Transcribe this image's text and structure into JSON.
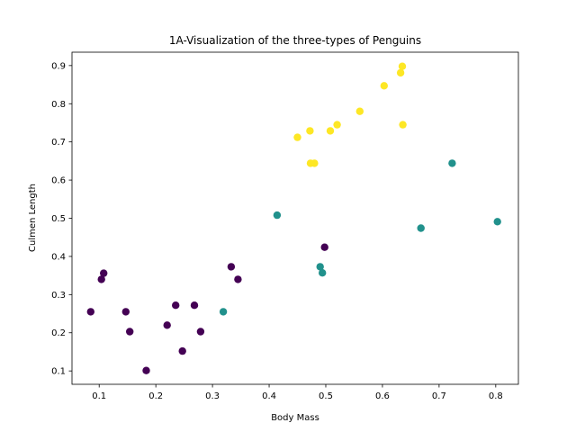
{
  "chart_data": {
    "type": "scatter",
    "title": "1A-Visualization of the three-types of Penguins",
    "xlabel": "Body Mass",
    "ylabel": "Culmen Length",
    "xlim": [
      0.052,
      0.84
    ],
    "ylim": [
      0.065,
      0.935
    ],
    "xticks": [
      "0.1",
      "0.2",
      "0.3",
      "0.4",
      "0.5",
      "0.6",
      "0.7",
      "0.8"
    ],
    "yticks": [
      "0.1",
      "0.2",
      "0.3",
      "0.4",
      "0.5",
      "0.6",
      "0.7",
      "0.8",
      "0.9"
    ],
    "grid": false,
    "legend": "none",
    "colors": {
      "class_0": "#440154",
      "class_1": "#21918c",
      "class_2": "#fde725"
    },
    "series": [
      {
        "class": "class_0",
        "x": [
          0.085,
          0.104,
          0.108,
          0.147,
          0.154,
          0.183,
          0.22,
          0.235,
          0.247,
          0.268,
          0.279,
          0.333,
          0.345,
          0.498
        ],
        "y": [
          0.255,
          0.34,
          0.356,
          0.255,
          0.203,
          0.101,
          0.22,
          0.272,
          0.152,
          0.272,
          0.203,
          0.373,
          0.34,
          0.424
        ]
      },
      {
        "class": "class_1",
        "x": [
          0.319,
          0.414,
          0.49,
          0.494,
          0.668,
          0.723,
          0.803
        ],
        "y": [
          0.255,
          0.508,
          0.373,
          0.357,
          0.474,
          0.644,
          0.491
        ]
      },
      {
        "class": "class_2",
        "x": [
          0.45,
          0.472,
          0.473,
          0.48,
          0.508,
          0.52,
          0.56,
          0.603,
          0.632,
          0.635,
          0.636
        ],
        "y": [
          0.712,
          0.729,
          0.644,
          0.644,
          0.729,
          0.745,
          0.78,
          0.847,
          0.881,
          0.898,
          0.745
        ]
      }
    ]
  }
}
